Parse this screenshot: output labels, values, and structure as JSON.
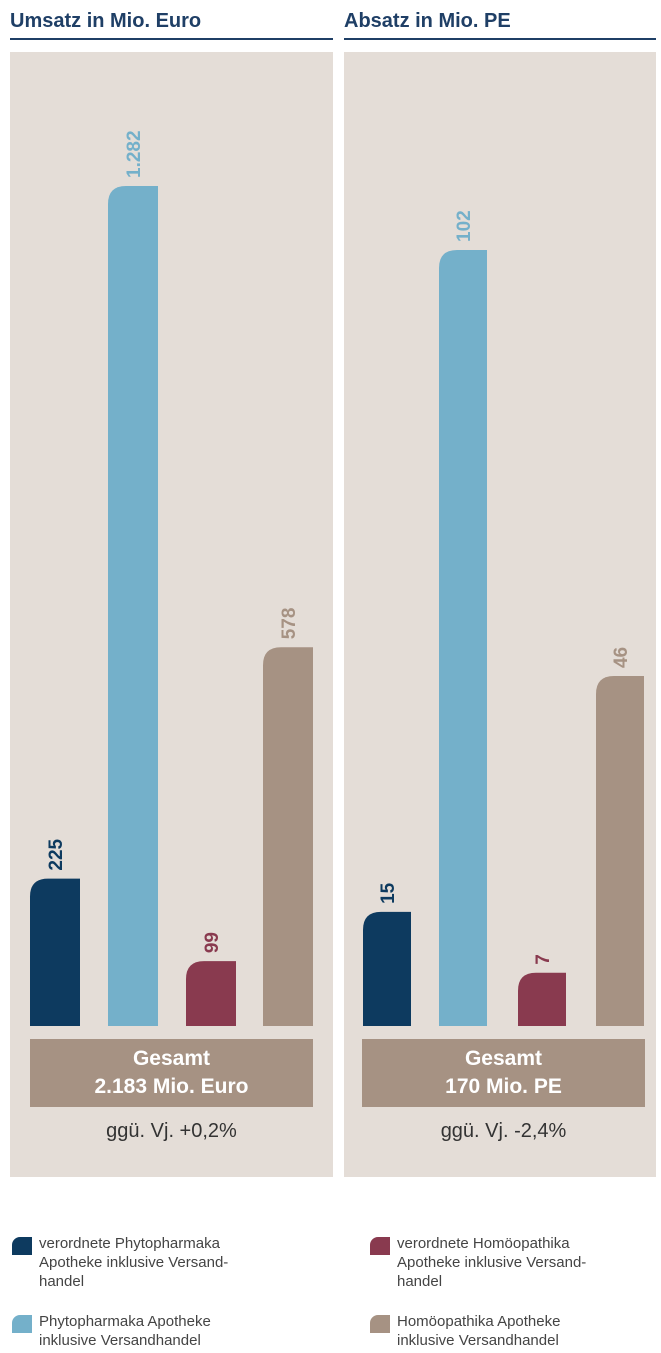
{
  "colors": {
    "verordnete_phyto": "#0d3a5f",
    "phyto": "#74b0ca",
    "verordnete_homoeo": "#893a4f",
    "homoeo": "#a69283",
    "panel_bg": "#e4ddd7",
    "title": "#1f3f66"
  },
  "left_panel": {
    "title": "Umsatz in Mio. Euro",
    "total_line1": "Gesamt",
    "total_line2": "2.183 Mio. Euro",
    "change": "ggü. Vj. +0,2%"
  },
  "right_panel": {
    "title": "Absatz in Mio. PE",
    "total_line1": "Gesamt",
    "total_line2": "170 Mio. PE",
    "change": "ggü. Vj. -2,4%"
  },
  "legend": [
    {
      "lines": [
        "verordnete Phytopharmaka",
        "Apotheke inklusive Versand-",
        "handel"
      ],
      "color_key": "verordnete_phyto"
    },
    {
      "lines": [
        "Phytopharmaka Apotheke",
        "inklusive Versandhandel"
      ],
      "color_key": "phyto"
    },
    {
      "lines": [
        "verordnete Homöopathika",
        "Apotheke inklusive Versand-",
        "handel"
      ],
      "color_key": "verordnete_homoeo"
    },
    {
      "lines": [
        "Homöopathika Apotheke",
        "inklusive Versandhandel"
      ],
      "color_key": "homoeo"
    }
  ],
  "chart_data": [
    {
      "type": "bar",
      "title": "Umsatz in Mio. Euro",
      "categories": [
        "verordnete Phytopharmaka Apotheke inklusive Versandhandel",
        "Phytopharmaka Apotheke inklusive Versandhandel",
        "verordnete Homöopathika Apotheke inklusive Versandhandel",
        "Homöopathika Apotheke inklusive Versandhandel"
      ],
      "values": [
        225,
        1282,
        99,
        578
      ],
      "value_labels": [
        "225",
        "1.282",
        "99",
        "578"
      ],
      "ylim": [
        0,
        1282
      ],
      "grid": false
    },
    {
      "type": "bar",
      "title": "Absatz in Mio. PE",
      "categories": [
        "verordnete Phytopharmaka Apotheke inklusive Versandhandel",
        "Phytopharmaka Apotheke inklusive Versandhandel",
        "verordnete Homöopathika Apotheke inklusive Versandhandel",
        "Homöopathika Apotheke inklusive Versandhandel"
      ],
      "values": [
        15,
        102,
        7,
        46
      ],
      "value_labels": [
        "15",
        "102",
        "7",
        "46"
      ],
      "ylim": [
        0,
        102
      ],
      "grid": false
    }
  ]
}
